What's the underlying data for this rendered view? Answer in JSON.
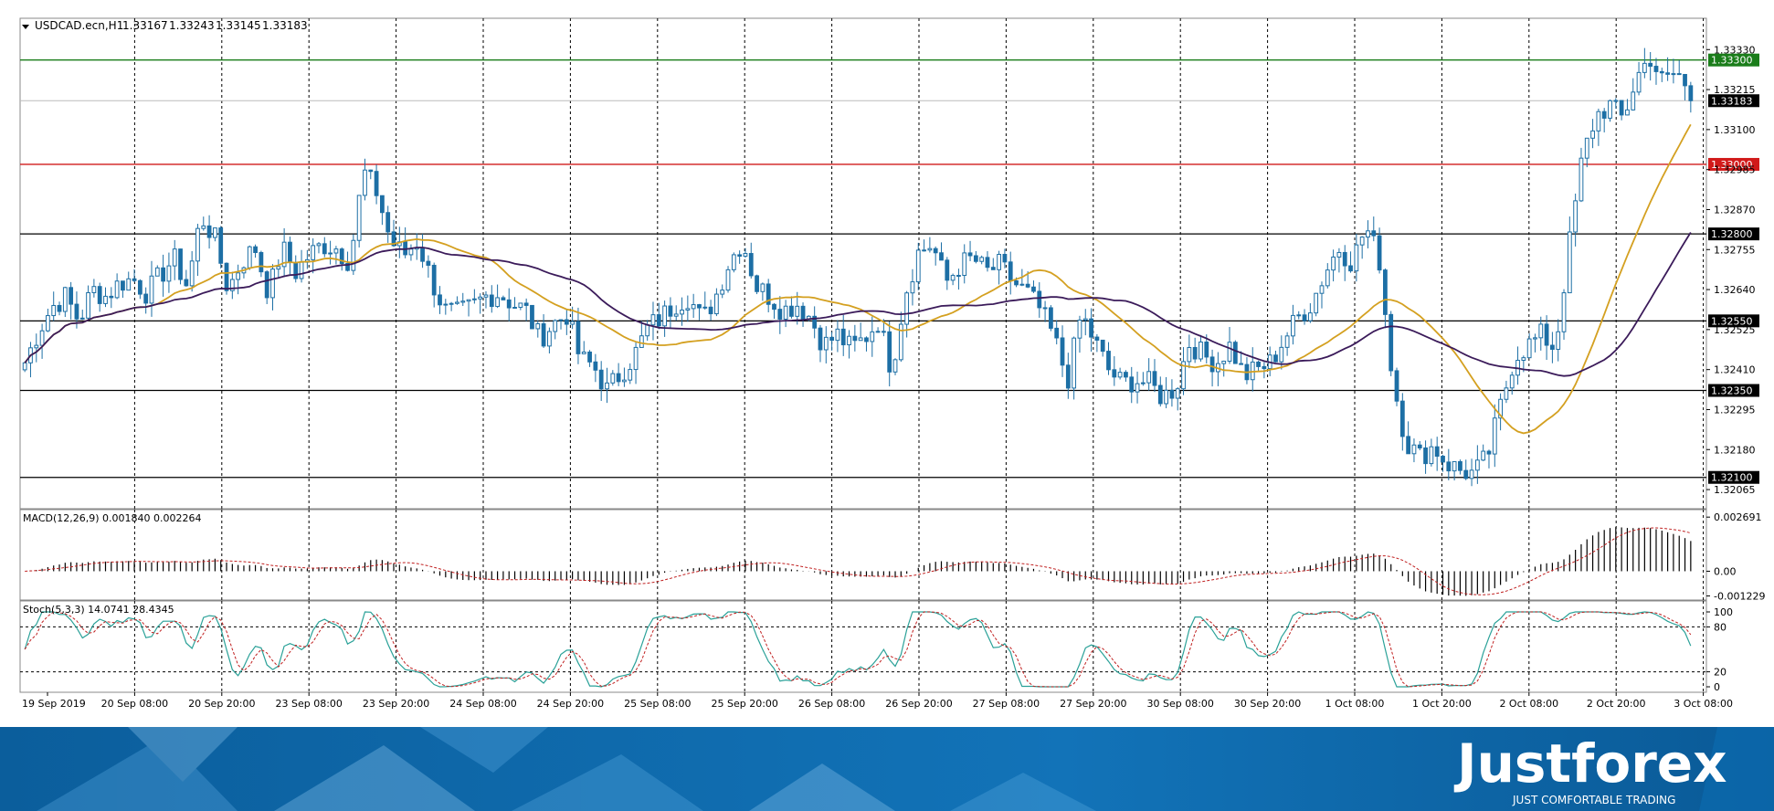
{
  "chart_data": {
    "type": "candlestick",
    "symbol_header": {
      "symbol": "USDCAD.ecn,H1",
      "open": "1.33167",
      "high": "1.33243",
      "low": "1.33145",
      "close": "1.33183"
    },
    "price_axis": {
      "ylim": [
        1.3201,
        1.3342
      ],
      "ticks": [
        "1.33330",
        "1.33215",
        "1.33100",
        "1.32985",
        "1.32870",
        "1.32755",
        "1.32640",
        "1.32525",
        "1.32410",
        "1.32295",
        "1.32180",
        "1.32065"
      ]
    },
    "time_axis": {
      "labels": [
        "19 Sep 2019",
        "20 Sep 08:00",
        "20 Sep 20:00",
        "23 Sep 08:00",
        "23 Sep 20:00",
        "24 Sep 08:00",
        "24 Sep 20:00",
        "25 Sep 08:00",
        "25 Sep 20:00",
        "26 Sep 08:00",
        "26 Sep 20:00",
        "27 Sep 08:00",
        "27 Sep 20:00",
        "30 Sep 08:00",
        "30 Sep 20:00",
        "1 Oct 08:00",
        "1 Oct 20:00",
        "2 Oct 08:00",
        "2 Oct 20:00",
        "3 Oct 08:00"
      ]
    },
    "levels": [
      {
        "value": 1.333,
        "label": "1.33300",
        "color": "#1a7d1a"
      },
      {
        "value": 1.33,
        "label": "1.33000",
        "color": "#d11a1a"
      },
      {
        "value": 1.328,
        "label": "1.32800",
        "color": "#000000"
      },
      {
        "value": 1.3255,
        "label": "1.32550",
        "color": "#000000"
      },
      {
        "value": 1.3235,
        "label": "1.32350",
        "color": "#000000"
      },
      {
        "value": 1.321,
        "label": "1.32100",
        "color": "#000000"
      }
    ],
    "current_price": {
      "value": 1.33183,
      "label": "1.33183"
    },
    "price_path": [
      1.3243,
      1.3252,
      1.3259,
      1.3262,
      1.3255,
      1.3264,
      1.3262,
      1.3266,
      1.3267,
      1.3263,
      1.3268,
      1.3273,
      1.3265,
      1.3285,
      1.3279,
      1.3264,
      1.3272,
      1.3276,
      1.3263,
      1.3276,
      1.3269,
      1.3274,
      1.3277,
      1.3276,
      1.3272,
      1.3298,
      1.3292,
      1.3278,
      1.3274,
      1.3278,
      1.3267,
      1.3258,
      1.3257,
      1.3259,
      1.3262,
      1.3263,
      1.326,
      1.3258,
      1.325,
      1.3254,
      1.3257,
      1.3244,
      1.3242,
      1.3235,
      1.324,
      1.3245,
      1.3253,
      1.3256,
      1.326,
      1.3262,
      1.3255,
      1.3262,
      1.3272,
      1.3278,
      1.3265,
      1.3262,
      1.3258,
      1.326,
      1.3256,
      1.3248,
      1.3251,
      1.3247,
      1.325,
      1.3255,
      1.3241,
      1.3263,
      1.3275,
      1.3277,
      1.3266,
      1.3271,
      1.3273,
      1.3269,
      1.3271,
      1.3266,
      1.3263,
      1.3258,
      1.325,
      1.3238,
      1.3257,
      1.3249,
      1.3241,
      1.3237,
      1.3238,
      1.3237,
      1.3233,
      1.3236,
      1.3249,
      1.3245,
      1.3243,
      1.3248,
      1.3239,
      1.3241,
      1.3243,
      1.325,
      1.3256,
      1.326,
      1.3269,
      1.3276,
      1.3272,
      1.3282,
      1.3273,
      1.3238,
      1.322,
      1.3216,
      1.3219,
      1.3214,
      1.3212,
      1.3211,
      1.3216,
      1.3231,
      1.3245,
      1.3248,
      1.3251,
      1.3247,
      1.3276,
      1.3302,
      1.3314,
      1.3317,
      1.3313,
      1.3325,
      1.3331,
      1.3323,
      1.3327,
      1.3318
    ],
    "ma_fast_color": "#d4a020",
    "ma_slow_color": "#3b1b5a",
    "candle_color": "#1d6fa5",
    "macd": {
      "label": "MACD(12,26,9) 0.001840 0.002264",
      "ticks": [
        "0.002691",
        "0.00",
        "-0.001229"
      ],
      "ylim": [
        -0.00125,
        0.0027
      ]
    },
    "stochastic": {
      "label": "Stoch(5,3,3) 14.0741 28.4345",
      "ticks": [
        "100",
        "80",
        "20",
        "0"
      ],
      "levels": [
        80,
        20
      ],
      "main_color": "#2aa198",
      "signal_color": "#c02020"
    },
    "brand": {
      "name": "Justforex",
      "tagline": "JUST COMFORTABLE TRADING"
    }
  }
}
